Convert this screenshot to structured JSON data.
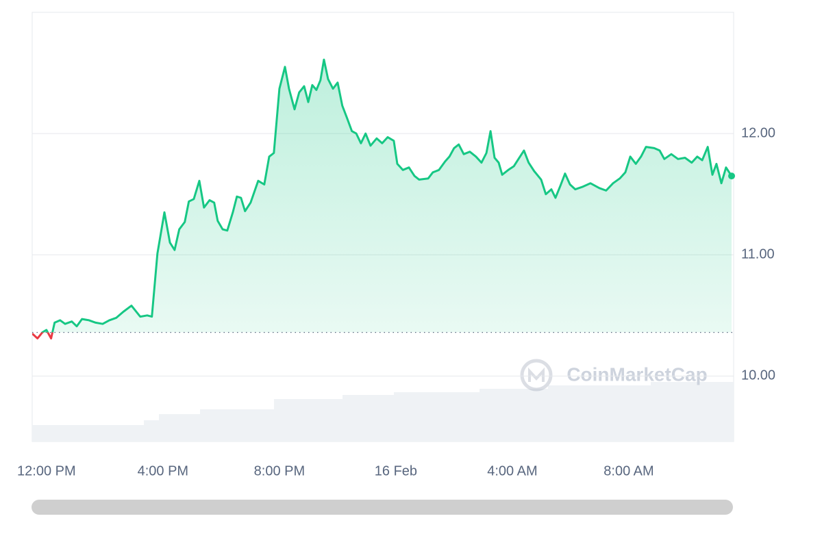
{
  "chart_data": {
    "type": "line",
    "x": [
      -0.49,
      -0.31,
      -0.14,
      0,
      0.16,
      0.28,
      0.47,
      0.64,
      0.87,
      1.04,
      1.22,
      1.46,
      1.69,
      1.93,
      2.16,
      2.4,
      2.64,
      2.92,
      3.22,
      3.46,
      3.62,
      3.81,
      4.05,
      4.24,
      4.4,
      4.56,
      4.75,
      4.89,
      5.06,
      5.25,
      5.41,
      5.6,
      5.76,
      5.88,
      6.05,
      6.21,
      6.4,
      6.54,
      6.68,
      6.82,
      7.01,
      7.27,
      7.48,
      7.65,
      7.81,
      8,
      8.19,
      8.33,
      8.52,
      8.68,
      8.85,
      8.99,
      9.13,
      9.27,
      9.41,
      9.53,
      9.67,
      9.84,
      10,
      10.16,
      10.35,
      10.49,
      10.64,
      10.8,
      10.96,
      11.13,
      11.34,
      11.53,
      11.72,
      11.93,
      12.05,
      12.24,
      12.45,
      12.64,
      12.8,
      13.11,
      13.27,
      13.48,
      13.69,
      13.84,
      14,
      14.16,
      14.33,
      14.54,
      14.75,
      14.94,
      15.11,
      15.25,
      15.39,
      15.53,
      15.65,
      15.86,
      16.05,
      16.21,
      16.4,
      16.56,
      16.75,
      16.99,
      17.15,
      17.34,
      17.48,
      17.65,
      17.81,
      17.98,
      18.16,
      18.4,
      18.68,
      18.99,
      19.22,
      19.46,
      19.69,
      19.88,
      20.05,
      20.24,
      20.42,
      20.59,
      20.87,
      21.06,
      21.22,
      21.46,
      21.69,
      21.93,
      22.16,
      22.35,
      22.52,
      22.71,
      22.87,
      23.01,
      23.18,
      23.34,
      23.53
    ],
    "values": [
      10.35,
      10.31,
      10.36,
      10.38,
      10.31,
      10.44,
      10.46,
      10.43,
      10.45,
      10.41,
      10.47,
      10.46,
      10.44,
      10.43,
      10.46,
      10.48,
      10.53,
      10.58,
      10.49,
      10.5,
      10.49,
      11.01,
      11.35,
      11.1,
      11.04,
      11.21,
      11.27,
      11.44,
      11.46,
      11.61,
      11.39,
      11.45,
      11.43,
      11.28,
      11.21,
      11.2,
      11.35,
      11.48,
      11.47,
      11.36,
      11.43,
      11.61,
      11.58,
      11.81,
      11.84,
      12.37,
      12.55,
      12.37,
      12.2,
      12.34,
      12.39,
      12.26,
      12.4,
      12.36,
      12.44,
      12.61,
      12.45,
      12.37,
      12.42,
      12.23,
      12.11,
      12.02,
      12,
      11.92,
      12,
      11.9,
      11.96,
      11.92,
      11.97,
      11.94,
      11.75,
      11.7,
      11.72,
      11.65,
      11.62,
      11.63,
      11.68,
      11.7,
      11.77,
      11.81,
      11.88,
      11.91,
      11.83,
      11.85,
      11.81,
      11.76,
      11.84,
      12.02,
      11.8,
      11.76,
      11.66,
      11.7,
      11.73,
      11.79,
      11.86,
      11.76,
      11.69,
      11.62,
      11.5,
      11.54,
      11.47,
      11.57,
      11.67,
      11.58,
      11.54,
      11.56,
      11.59,
      11.55,
      11.53,
      11.59,
      11.63,
      11.68,
      11.81,
      11.75,
      11.81,
      11.89,
      11.88,
      11.86,
      11.79,
      11.83,
      11.79,
      11.8,
      11.76,
      11.81,
      11.78,
      11.89,
      11.66,
      11.75,
      11.59,
      11.72,
      11.65
    ],
    "baseline": 10.36,
    "color": "#16c784",
    "down_color": "#ea3943",
    "xlim": [
      -0.49,
      23.6
    ],
    "xticks": [
      {
        "value": 0,
        "label": "12:00 PM"
      },
      {
        "value": 4,
        "label": "4:00 PM"
      },
      {
        "value": 8,
        "label": "8:00 PM"
      },
      {
        "value": 12,
        "label": "16 Feb"
      },
      {
        "value": 16,
        "label": "4:00 AM"
      },
      {
        "value": 20,
        "label": "8:00 AM"
      }
    ],
    "ylim": [
      9.46,
      13.0
    ],
    "yticks": [
      {
        "value": 10,
        "label": "10.00"
      },
      {
        "value": 11,
        "label": "11.00"
      },
      {
        "value": 12,
        "label": "12.00"
      }
    ],
    "grid": true,
    "watermark": "CoinMarketCap"
  }
}
